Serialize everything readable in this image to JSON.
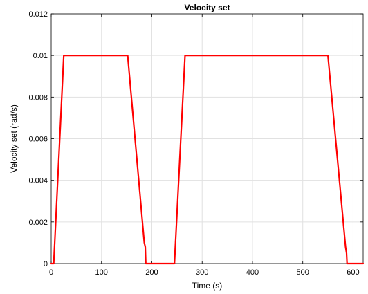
{
  "chart_data": {
    "type": "line",
    "title": "Velocity set",
    "xlabel": "Time (s)",
    "ylabel": "Velocity set (rad/s)",
    "xlim": [
      0,
      620
    ],
    "ylim": [
      0,
      0.012
    ],
    "x_ticks": [
      0,
      100,
      200,
      300,
      400,
      500,
      600
    ],
    "x_tick_labels": [
      "0",
      "100",
      "200",
      "300",
      "400",
      "500",
      "600"
    ],
    "y_ticks": [
      0,
      0.002,
      0.004,
      0.006,
      0.008,
      0.01,
      0.012
    ],
    "y_tick_labels": [
      "0",
      "0.002",
      "0.004",
      "0.006",
      "0.008",
      "0.01",
      "0.012"
    ],
    "grid": true,
    "legend": "none",
    "series": [
      {
        "color": "#ff0000",
        "x": [
          0,
          5,
          25,
          152,
          185,
          187,
          188,
          245,
          246,
          266,
          550,
          585,
          587,
          588,
          620
        ],
        "y": [
          0,
          0,
          0.01,
          0.01,
          0.001,
          0.0008,
          0,
          0,
          0.0005,
          0.01,
          0.01,
          0.0008,
          0.0005,
          0,
          0
        ]
      }
    ]
  }
}
